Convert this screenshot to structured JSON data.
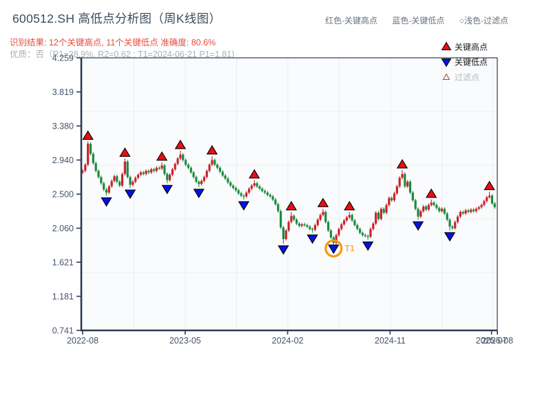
{
  "header": {
    "title": "600512.SH 高低点分析图（周K线图）",
    "legend_inline": [
      {
        "label": "红色-关键高点"
      },
      {
        "label": "蓝色-关键低点"
      },
      {
        "label": "○浅色-过滤点"
      }
    ],
    "result_line": "识别结果: 12个关键高点, 11个关键低点  准确度: 80.6%",
    "quality_line": "优质：否（R1=28.9%, R2=0.62 ; T1=2024-06-21 P1=1.81)"
  },
  "stats": {
    "key_high_count": "12",
    "key_low_count": "11",
    "accuracy": "80.6%",
    "quality": "否",
    "r1": "28.9%",
    "r2": "0.62",
    "t1_date": "2024-06-21",
    "p1": "1.81"
  },
  "chart_data": {
    "type": "candlestick",
    "title": "600512.SH 高低点分析图（周K线图）",
    "period": "weekly",
    "y_axis": {
      "min": 0.741,
      "max": 4.259,
      "tick_labels": [
        "4.259",
        "3.819",
        "3.380",
        "2.940",
        "2.500",
        "2.060",
        "1.621",
        "1.181",
        "0.741"
      ]
    },
    "x_axis": {
      "ticks": [
        {
          "label": "2022-08",
          "week": 0
        },
        {
          "label": "2023-05",
          "week": 38.8
        },
        {
          "label": "2024-02",
          "week": 77.6
        },
        {
          "label": "2024-11",
          "week": 116.4
        },
        {
          "label": "2025-07",
          "week": 154.8
        },
        {
          "label": "2025-08",
          "week": 157
        }
      ]
    },
    "open_first": 2.78,
    "closes": [
      2.8,
      2.88,
      3.15,
      3.02,
      2.9,
      2.8,
      2.72,
      2.64,
      2.56,
      2.52,
      2.6,
      2.67,
      2.73,
      2.66,
      2.61,
      2.76,
      2.92,
      2.72,
      2.62,
      2.66,
      2.71,
      2.75,
      2.78,
      2.76,
      2.8,
      2.78,
      2.82,
      2.8,
      2.84,
      2.83,
      2.87,
      2.76,
      2.68,
      2.75,
      2.82,
      2.89,
      2.96,
      3.01,
      2.94,
      2.88,
      2.84,
      2.78,
      2.72,
      2.66,
      2.63,
      2.67,
      2.72,
      2.8,
      2.88,
      2.94,
      2.88,
      2.84,
      2.79,
      2.74,
      2.7,
      2.65,
      2.61,
      2.58,
      2.55,
      2.51,
      2.48,
      2.47,
      2.52,
      2.57,
      2.61,
      2.64,
      2.6,
      2.57,
      2.54,
      2.52,
      2.49,
      2.47,
      2.43,
      2.37,
      2.28,
      2.07,
      1.92,
      2.03,
      2.14,
      2.22,
      2.17,
      2.12,
      2.09,
      2.11,
      2.1,
      2.08,
      2.05,
      2.04,
      2.1,
      2.17,
      2.23,
      2.27,
      2.14,
      2.03,
      1.94,
      1.87,
      1.97,
      2.05,
      2.11,
      2.16,
      2.2,
      2.23,
      2.16,
      2.1,
      2.05,
      2.0,
      1.97,
      1.96,
      1.95,
      2.05,
      2.12,
      2.26,
      2.18,
      2.31,
      2.26,
      2.36,
      2.45,
      2.42,
      2.51,
      2.6,
      2.71,
      2.76,
      2.6,
      2.66,
      2.52,
      2.42,
      2.31,
      2.21,
      2.28,
      2.34,
      2.3,
      2.36,
      2.39,
      2.36,
      2.32,
      2.28,
      2.31,
      2.25,
      2.17,
      2.08,
      2.06,
      2.14,
      2.21,
      2.27,
      2.25,
      2.29,
      2.27,
      2.3,
      2.28,
      2.31,
      2.33,
      2.36,
      2.41,
      2.46,
      2.48,
      2.38,
      2.33
    ],
    "key_highs": [
      {
        "week": 2,
        "price": 3.18
      },
      {
        "week": 16,
        "price": 2.96
      },
      {
        "week": 30,
        "price": 2.91
      },
      {
        "week": 37,
        "price": 3.06
      },
      {
        "week": 49,
        "price": 2.99
      },
      {
        "week": 65,
        "price": 2.68
      },
      {
        "week": 79,
        "price": 2.27
      },
      {
        "week": 91,
        "price": 2.31
      },
      {
        "week": 101,
        "price": 2.27
      },
      {
        "week": 121,
        "price": 2.81
      },
      {
        "week": 132,
        "price": 2.43
      },
      {
        "week": 154,
        "price": 2.53
      }
    ],
    "key_lows": [
      {
        "week": 9,
        "price": 2.48
      },
      {
        "week": 18,
        "price": 2.58
      },
      {
        "week": 32,
        "price": 2.64
      },
      {
        "week": 44,
        "price": 2.59
      },
      {
        "week": 61,
        "price": 2.43
      },
      {
        "week": 76,
        "price": 1.86
      },
      {
        "week": 87,
        "price": 2.0
      },
      {
        "week": 95,
        "price": 1.87
      },
      {
        "week": 108,
        "price": 1.91
      },
      {
        "week": 127,
        "price": 2.17
      },
      {
        "week": 139,
        "price": 2.03
      }
    ],
    "t1_annotation": {
      "week": 95,
      "price": 1.87,
      "label": "T1",
      "date": "2024-06-21"
    },
    "plot_legend": [
      {
        "label": "关键高点",
        "marker": "red-up-triangle"
      },
      {
        "label": "关键低点",
        "marker": "blue-down-triangle"
      },
      {
        "label": "过滤点",
        "marker": "hollow-up-triangle"
      }
    ],
    "colors": {
      "up": "#c9232a",
      "down": "#1c8a3e",
      "key_high": "#e60f15",
      "key_low": "#0013e0",
      "annotation": "#f59b0b",
      "annotation_text": "#f2b06a",
      "axis": "#2c3b51",
      "grid": "#ececf1",
      "tick_label": "#44546a",
      "plot_bg": "#fafbfc",
      "legend_text": "#1b1b1b",
      "legend_muted": "#b8babe",
      "filter_marker_stroke": "#9b4b42",
      "filter_marker_fill": "#fdf0ec"
    }
  }
}
